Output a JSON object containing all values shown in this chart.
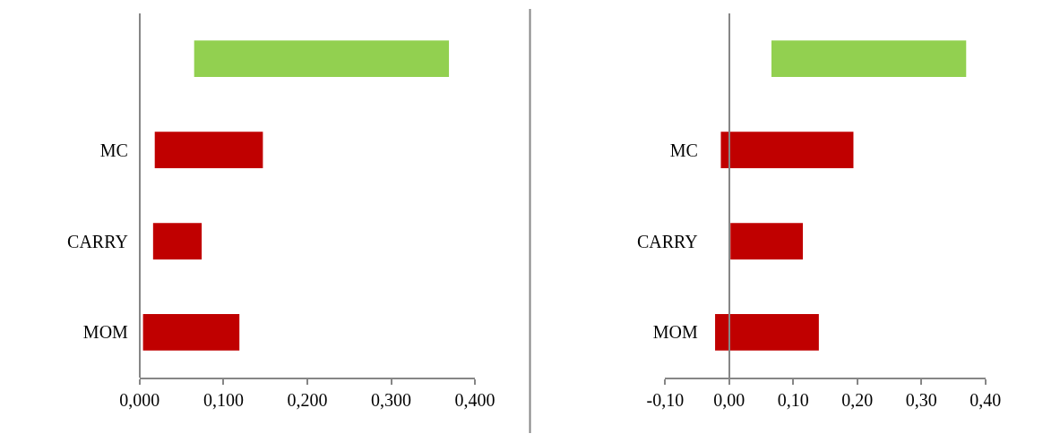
{
  "chart_data": [
    {
      "type": "bar",
      "orientation": "horizontal",
      "categories": [
        null,
        "MC",
        "CARRY",
        "MOM"
      ],
      "base": [
        0.065,
        0.018,
        0.016,
        0.004
      ],
      "values": [
        0.304,
        0.129,
        0.058,
        0.115
      ],
      "colors": [
        "#92d050",
        "#c00000",
        "#c00000",
        "#c00000"
      ],
      "xlim": [
        0,
        0.4
      ],
      "xticks": [
        {
          "value": 0,
          "label": "0,000"
        },
        {
          "value": 0.1,
          "label": "0,100"
        },
        {
          "value": 0.2,
          "label": "0,200"
        },
        {
          "value": 0.3,
          "label": "0,300"
        },
        {
          "value": 0.4,
          "label": "0,400"
        }
      ]
    },
    {
      "type": "bar",
      "orientation": "horizontal",
      "categories": [
        null,
        "MC",
        "CARRY",
        "MOM"
      ],
      "base": [
        0.066,
        -0.013,
        0.002,
        -0.022
      ],
      "values": [
        0.304,
        0.207,
        0.113,
        0.162
      ],
      "colors": [
        "#92d050",
        "#c00000",
        "#c00000",
        "#c00000"
      ],
      "xlim": [
        -0.1,
        0.4
      ],
      "xticks": [
        {
          "value": -0.1,
          "label": "-0,10"
        },
        {
          "value": 0,
          "label": "0,00"
        },
        {
          "value": 0.1,
          "label": "0,10"
        },
        {
          "value": 0.2,
          "label": "0,20"
        },
        {
          "value": 0.3,
          "label": "0,30"
        },
        {
          "value": 0.4,
          "label": "0,40"
        }
      ]
    }
  ]
}
